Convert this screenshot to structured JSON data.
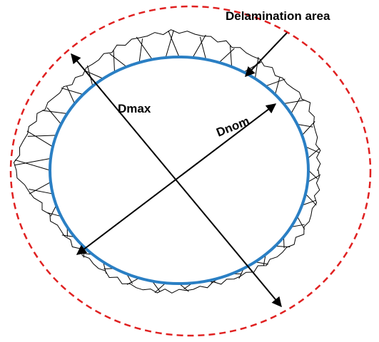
{
  "labels": {
    "delamination": "Delamination area",
    "dmax": "Dmax",
    "dnom": "Dnom"
  }
}
